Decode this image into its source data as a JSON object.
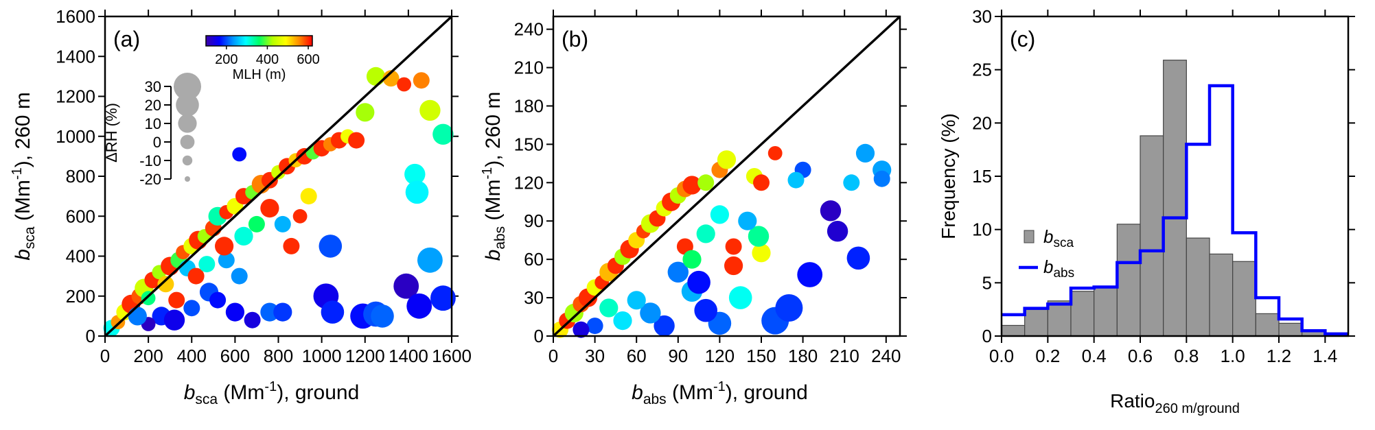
{
  "chart_data": [
    {
      "type": "scatter",
      "panel_label": "(a)",
      "xlabel": {
        "var": "b",
        "sub": "sca",
        "unit": " (Mm",
        "sup": "-1",
        "rest": "),  ground"
      },
      "ylabel": {
        "var": "b",
        "sub": "sca",
        "unit": " (Mm",
        "sup": "-1",
        "rest": "), 260 m"
      },
      "xlim": [
        0,
        1600
      ],
      "ylim": [
        0,
        1600
      ],
      "xticks": [
        0,
        200,
        400,
        600,
        800,
        1000,
        1200,
        1400,
        1600
      ],
      "xtick_labels": [
        "0",
        "200",
        "400",
        "600",
        "800",
        "1000",
        "1200",
        "1400",
        "1600"
      ],
      "yticks": [
        0,
        200,
        400,
        600,
        800,
        1000,
        1200,
        1400,
        1600
      ],
      "ytick_labels": [
        "0",
        "200",
        "400",
        "600",
        "800",
        "1000",
        "1200",
        "1400",
        "1600"
      ],
      "one_to_one_line": [
        [
          0,
          0
        ],
        [
          1600,
          1600
        ]
      ],
      "colorbar": {
        "label": "MLH (m)",
        "range": [
          100,
          620
        ],
        "ticks": [
          200,
          400,
          600
        ],
        "colors": [
          "#3c00a8",
          "#0000ff",
          "#0090ff",
          "#00ffff",
          "#00ff66",
          "#b4ff00",
          "#ffff00",
          "#ff8c00",
          "#ff0000"
        ]
      },
      "size_legend": {
        "label": "ΔRH (%)",
        "ticks": [
          30,
          20,
          10,
          0,
          -10,
          -20
        ],
        "ylim": [
          -20,
          30
        ]
      },
      "points": [
        [
          30,
          40,
          300,
          5
        ],
        [
          60,
          70,
          550,
          0
        ],
        [
          90,
          120,
          480,
          5
        ],
        [
          120,
          160,
          600,
          10
        ],
        [
          160,
          200,
          580,
          5
        ],
        [
          180,
          240,
          450,
          10
        ],
        [
          200,
          190,
          350,
          0
        ],
        [
          220,
          280,
          600,
          5
        ],
        [
          250,
          320,
          420,
          0
        ],
        [
          280,
          260,
          520,
          5
        ],
        [
          300,
          350,
          600,
          10
        ],
        [
          340,
          380,
          380,
          5
        ],
        [
          360,
          420,
          580,
          0
        ],
        [
          400,
          450,
          470,
          5
        ],
        [
          430,
          480,
          600,
          10
        ],
        [
          460,
          500,
          420,
          0
        ],
        [
          500,
          540,
          590,
          5
        ],
        [
          520,
          600,
          330,
          10
        ],
        [
          560,
          620,
          600,
          0
        ],
        [
          600,
          650,
          480,
          5
        ],
        [
          640,
          700,
          600,
          5
        ],
        [
          680,
          720,
          400,
          0
        ],
        [
          720,
          760,
          560,
          10
        ],
        [
          760,
          780,
          600,
          5
        ],
        [
          800,
          820,
          450,
          0
        ],
        [
          840,
          850,
          600,
          5
        ],
        [
          880,
          880,
          520,
          0
        ],
        [
          920,
          900,
          600,
          5
        ],
        [
          960,
          920,
          390,
          0
        ],
        [
          1000,
          940,
          600,
          5
        ],
        [
          1040,
          960,
          560,
          0
        ],
        [
          1080,
          980,
          600,
          5
        ],
        [
          1120,
          1000,
          480,
          0
        ],
        [
          1160,
          980,
          600,
          5
        ],
        [
          1200,
          1120,
          420,
          10
        ],
        [
          1250,
          1300,
          430,
          10
        ],
        [
          1320,
          1290,
          540,
          5
        ],
        [
          1380,
          1260,
          600,
          0
        ],
        [
          1460,
          1280,
          560,
          5
        ],
        [
          1500,
          1130,
          450,
          15
        ],
        [
          1560,
          1010,
          330,
          15
        ],
        [
          1430,
          810,
          300,
          15
        ],
        [
          1440,
          720,
          290,
          20
        ],
        [
          620,
          910,
          170,
          0
        ],
        [
          380,
          340,
          260,
          5
        ],
        [
          480,
          220,
          200,
          10
        ],
        [
          520,
          180,
          170,
          5
        ],
        [
          260,
          100,
          180,
          10
        ],
        [
          200,
          60,
          120,
          0
        ],
        [
          320,
          80,
          150,
          15
        ],
        [
          400,
          140,
          200,
          5
        ],
        [
          600,
          120,
          160,
          10
        ],
        [
          680,
          80,
          140,
          5
        ],
        [
          760,
          120,
          210,
          10
        ],
        [
          820,
          120,
          190,
          10
        ],
        [
          1020,
          200,
          150,
          25
        ],
        [
          1050,
          120,
          180,
          20
        ],
        [
          1040,
          450,
          200,
          20
        ],
        [
          1190,
          100,
          170,
          25
        ],
        [
          1250,
          110,
          200,
          25
        ],
        [
          1280,
          100,
          210,
          20
        ],
        [
          1390,
          250,
          120,
          25
        ],
        [
          1450,
          150,
          160,
          25
        ],
        [
          1500,
          380,
          240,
          25
        ],
        [
          1560,
          190,
          180,
          25
        ],
        [
          560,
          380,
          240,
          5
        ],
        [
          640,
          500,
          310,
          10
        ],
        [
          700,
          560,
          360,
          5
        ],
        [
          760,
          640,
          600,
          10
        ],
        [
          820,
          560,
          250,
          5
        ],
        [
          860,
          450,
          600,
          5
        ],
        [
          900,
          600,
          600,
          0
        ],
        [
          940,
          700,
          500,
          5
        ],
        [
          150,
          100,
          220,
          10
        ],
        [
          420,
          300,
          600,
          5
        ],
        [
          330,
          180,
          600,
          5
        ],
        [
          470,
          360,
          310,
          5
        ],
        [
          550,
          450,
          600,
          10
        ],
        [
          620,
          300,
          230,
          5
        ]
      ]
    },
    {
      "type": "scatter",
      "panel_label": "(b)",
      "xlabel": {
        "var": "b",
        "sub": "abs",
        "unit": " (Mm",
        "sup": "-1",
        "rest": "),  ground"
      },
      "ylabel": {
        "var": "b",
        "sub": "abs",
        "unit": " (Mm",
        "sup": "-1",
        "rest": "), 260 m"
      },
      "xlim": [
        0,
        250
      ],
      "ylim": [
        0,
        250
      ],
      "xticks": [
        0,
        30,
        60,
        90,
        120,
        150,
        180,
        210,
        240
      ],
      "xtick_labels": [
        "0",
        "30",
        "60",
        "90",
        "120",
        "150",
        "180",
        "210",
        "240"
      ],
      "yticks": [
        0,
        30,
        60,
        90,
        120,
        150,
        180,
        210,
        240
      ],
      "ytick_labels": [
        "0",
        "30",
        "60",
        "90",
        "120",
        "150",
        "180",
        "210",
        "240"
      ],
      "one_to_one_line": [
        [
          0,
          0
        ],
        [
          250,
          250
        ]
      ],
      "points": [
        [
          5,
          5,
          500,
          5
        ],
        [
          10,
          12,
          600,
          5
        ],
        [
          15,
          18,
          420,
          10
        ],
        [
          20,
          25,
          580,
          5
        ],
        [
          25,
          30,
          600,
          10
        ],
        [
          30,
          38,
          480,
          5
        ],
        [
          35,
          42,
          600,
          0
        ],
        [
          40,
          50,
          530,
          10
        ],
        [
          45,
          55,
          600,
          5
        ],
        [
          50,
          62,
          420,
          5
        ],
        [
          55,
          68,
          600,
          10
        ],
        [
          60,
          75,
          510,
          5
        ],
        [
          65,
          82,
          590,
          0
        ],
        [
          70,
          88,
          450,
          10
        ],
        [
          75,
          92,
          600,
          5
        ],
        [
          80,
          100,
          470,
          5
        ],
        [
          85,
          105,
          600,
          10
        ],
        [
          90,
          110,
          430,
          5
        ],
        [
          95,
          115,
          560,
          5
        ],
        [
          100,
          118,
          600,
          10
        ],
        [
          110,
          120,
          420,
          5
        ],
        [
          120,
          130,
          560,
          5
        ],
        [
          125,
          138,
          470,
          10
        ],
        [
          145,
          125,
          470,
          5
        ],
        [
          150,
          120,
          600,
          5
        ],
        [
          160,
          143,
          600,
          0
        ],
        [
          180,
          130,
          200,
          5
        ],
        [
          175,
          122,
          260,
          5
        ],
        [
          215,
          120,
          260,
          5
        ],
        [
          225,
          143,
          240,
          10
        ],
        [
          237,
          130,
          240,
          10
        ],
        [
          237,
          123,
          220,
          5
        ],
        [
          200,
          98,
          120,
          15
        ],
        [
          205,
          82,
          130,
          15
        ],
        [
          220,
          61,
          180,
          20
        ],
        [
          185,
          48,
          170,
          25
        ],
        [
          160,
          12,
          200,
          30
        ],
        [
          170,
          22,
          190,
          30
        ],
        [
          135,
          30,
          300,
          20
        ],
        [
          120,
          10,
          210,
          20
        ],
        [
          110,
          20,
          180,
          20
        ],
        [
          100,
          35,
          250,
          15
        ],
        [
          105,
          42,
          170,
          20
        ],
        [
          90,
          50,
          220,
          15
        ],
        [
          80,
          8,
          190,
          15
        ],
        [
          70,
          18,
          230,
          15
        ],
        [
          60,
          28,
          260,
          10
        ],
        [
          50,
          12,
          280,
          10
        ],
        [
          40,
          22,
          320,
          10
        ],
        [
          30,
          8,
          200,
          5
        ],
        [
          20,
          5,
          140,
          5
        ],
        [
          110,
          80,
          320,
          10
        ],
        [
          120,
          95,
          300,
          10
        ],
        [
          130,
          70,
          600,
          5
        ],
        [
          150,
          65,
          480,
          10
        ],
        [
          148,
          78,
          340,
          15
        ],
        [
          130,
          55,
          600,
          10
        ],
        [
          95,
          70,
          600,
          5
        ],
        [
          100,
          60,
          360,
          10
        ],
        [
          140,
          90,
          250,
          10
        ]
      ]
    },
    {
      "type": "histogram",
      "panel_label": "(c)",
      "xlabel": {
        "text": "Ratio",
        "sub": "260 m/ground"
      },
      "ylabel": "Frequency (%)",
      "xlim": [
        0,
        1.5
      ],
      "ylim": [
        0,
        30
      ],
      "xticks": [
        0,
        0.2,
        0.4,
        0.6,
        0.8,
        1.0,
        1.2,
        1.4
      ],
      "xtick_labels": [
        "0.0",
        "0.2",
        "0.4",
        "0.6",
        "0.8",
        "1.0",
        "1.2",
        "1.4"
      ],
      "yticks": [
        0,
        5,
        10,
        15,
        20,
        25,
        30
      ],
      "ytick_labels": [
        "0",
        "5",
        "10",
        "15",
        "20",
        "25",
        "30"
      ],
      "bin_edges": [
        0.0,
        0.1,
        0.2,
        0.3,
        0.4,
        0.5,
        0.6,
        0.7,
        0.8,
        0.9,
        1.0,
        1.1,
        1.2,
        1.3,
        1.4,
        1.5
      ],
      "series": [
        {
          "name": "b",
          "sub": "sca",
          "style": "bars",
          "color": "#999999",
          "values": [
            1.0,
            2.5,
            3.3,
            4.2,
            4.6,
            10.5,
            18.8,
            25.9,
            9.2,
            7.7,
            7.0,
            2.1,
            1.2,
            0.5,
            0.3
          ]
        },
        {
          "name": "b",
          "sub": "abs",
          "style": "step",
          "color": "#0000ff",
          "values": [
            2.0,
            2.6,
            3.0,
            4.5,
            4.6,
            6.9,
            8.0,
            11.1,
            18.0,
            23.5,
            9.7,
            3.6,
            1.6,
            0.5,
            0.2
          ]
        }
      ]
    }
  ]
}
